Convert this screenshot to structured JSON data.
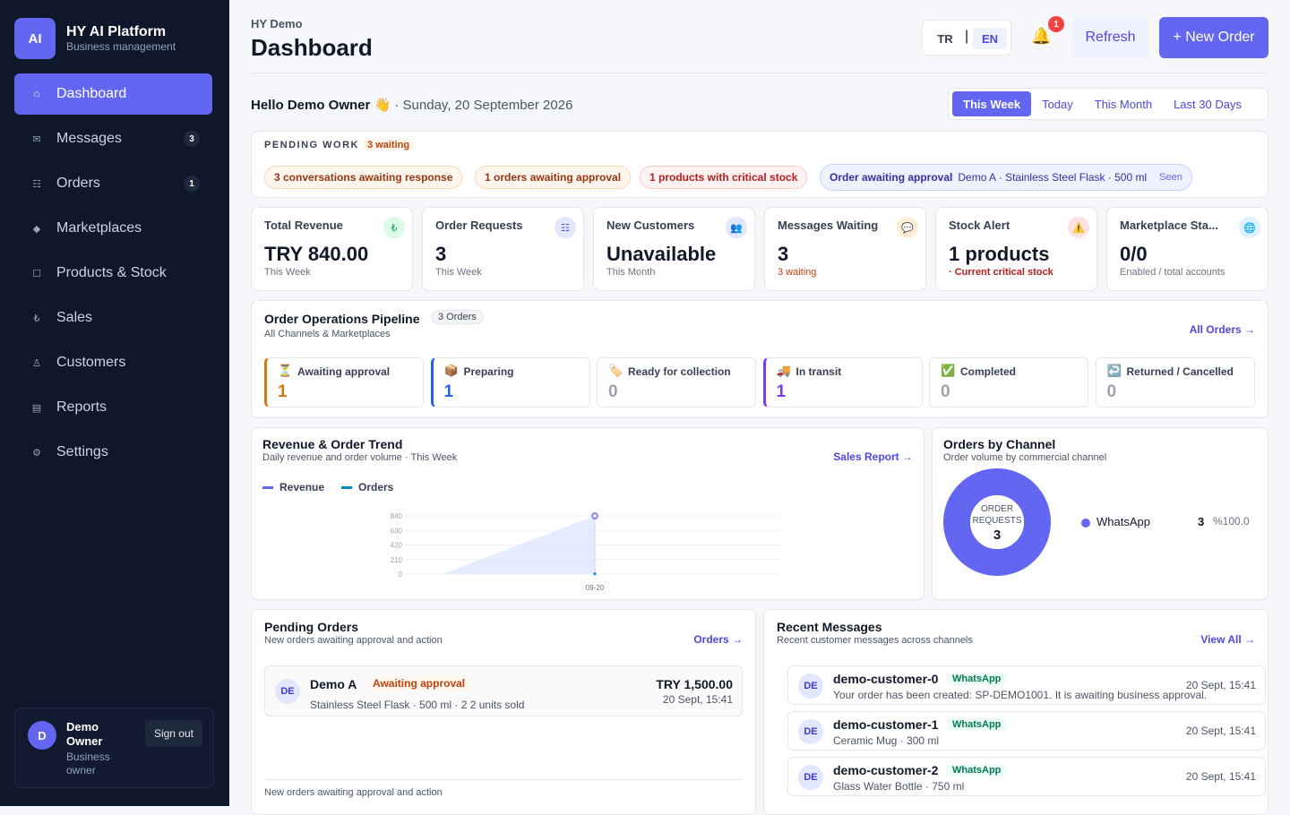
{
  "app": {
    "logo": "AI",
    "name": "HY AI Platform",
    "tagline": "Business management"
  },
  "nav": [
    {
      "label": "Dashboard",
      "icon": "home-icon",
      "glyph": "⌂",
      "active": true
    },
    {
      "label": "Messages",
      "icon": "mail-icon",
      "glyph": "✉",
      "badge": "3"
    },
    {
      "label": "Orders",
      "icon": "list-icon",
      "glyph": "☷",
      "badge": "1"
    },
    {
      "label": "Marketplaces",
      "icon": "diamond-icon",
      "glyph": "◆"
    },
    {
      "label": "Products & Stock",
      "icon": "box-icon",
      "glyph": "☐"
    },
    {
      "label": "Sales",
      "icon": "lira-icon",
      "glyph": "₺"
    },
    {
      "label": "Customers",
      "icon": "person-icon",
      "glyph": "♙"
    },
    {
      "label": "Reports",
      "icon": "report-icon",
      "glyph": "▤"
    },
    {
      "label": "Settings",
      "icon": "gear-icon",
      "glyph": "⚙"
    }
  ],
  "user": {
    "initial": "D",
    "name": "Demo Owner",
    "role": "Business owner",
    "signout": "Sign out"
  },
  "header": {
    "breadcrumb": "HY Demo",
    "title": "Dashboard",
    "lang_tr": "TR",
    "lang_sep": "|",
    "lang_en": "EN",
    "notifications": "1",
    "refresh": "Refresh",
    "new_order": "+ New Order"
  },
  "greeting": {
    "hello": "Hello Demo Owner 👋",
    "date": "· Sunday, 20 September 2026"
  },
  "periods": [
    "This Week",
    "Today",
    "This Month",
    "Last 30 Days"
  ],
  "pending": {
    "label": "PENDING WORK",
    "count": "3 waiting",
    "chips": [
      "3 conversations awaiting response",
      "1 orders awaiting approval",
      "1 products with critical stock"
    ],
    "notice": {
      "title": "Order awaiting approval",
      "detail": "Demo A · Stainless Steel Flask · 500 ml",
      "status": "Seen"
    }
  },
  "kpis": [
    {
      "title": "Total Revenue",
      "value": "TRY 840.00",
      "sub": "This Week",
      "icon": "lira-icon",
      "glyph": "₺",
      "color": "#16a34a",
      "bg": "#dcfce7"
    },
    {
      "title": "Order Requests",
      "value": "3",
      "sub": "This Week",
      "icon": "list-icon",
      "glyph": "☷",
      "color": "#4f46e5",
      "bg": "#e0e7ff"
    },
    {
      "title": "New Customers",
      "value": "Unavailable",
      "sub": "This Month",
      "icon": "people-icon",
      "glyph": "👥",
      "color": "#4f46e5",
      "bg": "#e0e7ff"
    },
    {
      "title": "Messages Waiting",
      "value": "3",
      "sub": "3 waiting",
      "icon": "chat-icon",
      "glyph": "💬",
      "color": "#d97706",
      "bg": "#ffedd5"
    },
    {
      "title": "Stock Alert",
      "value": "1 products",
      "sub": "· Current critical stock",
      "icon": "warning-icon",
      "glyph": "⚠️",
      "color": "#dc2626",
      "bg": "#fee2e2"
    },
    {
      "title": "Marketplace Sta...",
      "value": "0/0",
      "sub": "Enabled / total accounts",
      "icon": "globe-icon",
      "glyph": "🌐",
      "color": "#0284c7",
      "bg": "#e0f2fe"
    }
  ],
  "pipeline": {
    "title": "Order Operations Pipeline",
    "count": "3 Orders",
    "subtitle": "All Channels & Marketplaces",
    "link": "All Orders →",
    "stages": [
      {
        "label": "Awaiting approval",
        "value": "1",
        "icon": "hourglass-icon",
        "glyph": "⏳",
        "color": "#d97706"
      },
      {
        "label": "Preparing",
        "value": "1",
        "icon": "package-icon",
        "glyph": "📦",
        "color": "#2563eb"
      },
      {
        "label": "Ready for collection",
        "value": "0",
        "icon": "tag-icon",
        "glyph": "🏷️",
        "color": "#9ca3af"
      },
      {
        "label": "In transit",
        "value": "1",
        "icon": "truck-icon",
        "glyph": "🚚",
        "color": "#7c3aed"
      },
      {
        "label": "Completed",
        "value": "0",
        "icon": "check-icon",
        "glyph": "✅",
        "color": "#9ca3af"
      },
      {
        "label": "Returned / Cancelled",
        "value": "0",
        "icon": "return-icon",
        "glyph": "↩️",
        "color": "#9ca3af"
      }
    ]
  },
  "trend": {
    "title": "Revenue & Order Trend",
    "subtitle": "Daily revenue and order volume · This Week",
    "link": "Sales Report →"
  },
  "channels": {
    "title": "Orders by Channel",
    "subtitle": "Order volume by commercial channel",
    "center_label": "ORDER REQUESTS",
    "center_value": "3"
  },
  "chart_data": [
    {
      "type": "area",
      "series": [
        {
          "name": "Revenue",
          "color": "#6366f1",
          "x": [
            "09-20"
          ],
          "values": [
            840
          ]
        },
        {
          "name": "Orders",
          "color": "#0284c7",
          "x": [
            "09-20"
          ],
          "values": [
            3
          ]
        }
      ],
      "yticks": [
        "840",
        "630",
        "420",
        "210",
        "0"
      ],
      "xticks": [
        "09-20"
      ],
      "ylim": [
        0,
        840
      ],
      "legend": "top-left",
      "grid": true
    },
    {
      "type": "pie",
      "categories": [
        "WhatsApp"
      ],
      "values": [
        3
      ],
      "percent_labels": [
        "%100.0"
      ],
      "colors": [
        "#6366f1"
      ]
    }
  ],
  "pending_orders": {
    "title": "Pending Orders",
    "subtitle": "New orders awaiting approval and action",
    "link": "Orders →",
    "items": [
      {
        "initials": "DE",
        "name": "Demo A",
        "status": "Awaiting approval",
        "detail": "Stainless Steel Flask · 500 ml · 2 2 units sold",
        "amount": "TRY 1,500.00",
        "time": "20 Sept, 15:41"
      }
    ],
    "footer": "New orders awaiting approval and action"
  },
  "messages": {
    "title": "Recent Messages",
    "subtitle": "Recent customer messages across channels",
    "link": "View All →",
    "items": [
      {
        "initials": "DE",
        "name": "demo-customer-0",
        "channel": "WhatsApp",
        "text": "Your order has been created: SP-DEMO1001. It is awaiting business approval.",
        "time": "20 Sept, 15:41"
      },
      {
        "initials": "DE",
        "name": "demo-customer-1",
        "channel": "WhatsApp",
        "text": "Ceramic Mug · 300 ml",
        "time": "20 Sept, 15:41"
      },
      {
        "initials": "DE",
        "name": "demo-customer-2",
        "channel": "WhatsApp",
        "text": "Glass Water Bottle · 750 ml",
        "time": "20 Sept, 15:41"
      }
    ]
  }
}
